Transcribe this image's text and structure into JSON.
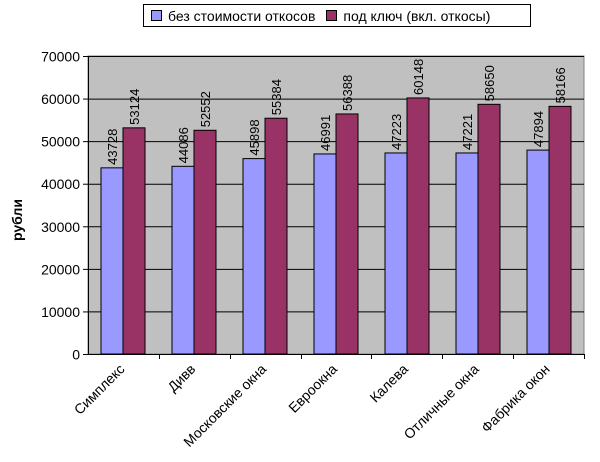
{
  "chart_data": {
    "type": "bar",
    "categories": [
      "Симплекс",
      "Дивв",
      "Московские окна",
      "Евроокна",
      "Калева",
      "Отличные окна",
      "Фабрика окон"
    ],
    "series": [
      {
        "name": "без стоимости откосов",
        "color": "#9999ff",
        "values": [
          43728,
          44086,
          45898,
          46991,
          47223,
          47221,
          47894
        ]
      },
      {
        "name": "под ключ (вкл. откосы)",
        "color": "#993366",
        "values": [
          53124,
          52552,
          55384,
          56388,
          60148,
          58650,
          58166
        ]
      }
    ],
    "ylabel": "рубли",
    "ylim": [
      0,
      70000
    ],
    "yticks": [
      0,
      10000,
      20000,
      30000,
      40000,
      50000,
      60000,
      70000
    ],
    "grid": true,
    "plot_background": "#c0c0c0",
    "legend_position": "top"
  }
}
